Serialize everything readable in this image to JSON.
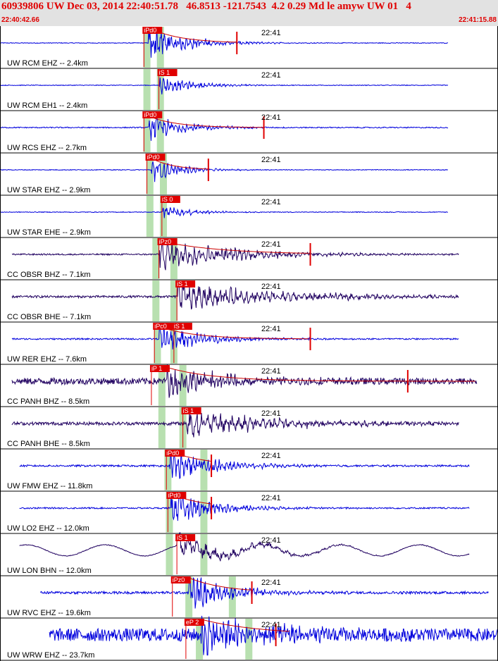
{
  "header": {
    "title": "60939806 UW Dec 03, 2014 22:40:51.78   46.8513 -121.7543  4.2 0.29 Md le amyw UW 01   4",
    "time_start": "22:40:42.66",
    "time_end": "22:41:15.88"
  },
  "colors": {
    "header_bg": "#e2e2e2",
    "header_text": "#e00000",
    "trace_short_period": "#0000dd",
    "trace_broadband": "#200060",
    "pick": "#e00000",
    "theoretical_band": "#b8e0b0",
    "coda_fit": "#cc0000"
  },
  "chart_data": {
    "type": "line",
    "title": "60939806 UW Dec 03, 2014 22:40:51.78   46.8513 -121.7543  4.2 0.29 Md le amyw UW 01   4",
    "x_unit": "seconds after 22:40:42.66",
    "xlim": [
      0,
      33.22
    ],
    "minute_tick": {
      "label": "22:41",
      "t": 17.34
    },
    "traces": [
      {
        "label": "UW RCM EHZ -- 2.4km",
        "color": "#0000dd",
        "start": 0,
        "end": 29.9,
        "noise": 0.02,
        "onset": 9.9,
        "amp": 0.95,
        "decay": 2.5,
        "period": 0.25,
        "picks": [
          {
            "label": "iPd0",
            "t": 9.6
          }
        ],
        "coda_end": 15.8,
        "coda_spike": 15.8,
        "bands": [
          9.8,
          10.7
        ]
      },
      {
        "label": "UW RCM EH1 -- 2.4km",
        "color": "#0000dd",
        "start": 0,
        "end": 29.9,
        "noise": 0.02,
        "onset": 10.6,
        "amp": 0.45,
        "decay": 2.3,
        "period": 0.25,
        "picks": [
          {
            "label": "iS 1",
            "t": 10.6
          }
        ],
        "coda_end": null,
        "coda_spike": null,
        "bands": [
          9.8,
          10.7
        ]
      },
      {
        "label": "UW RCS EHZ -- 2.7km",
        "color": "#0000dd",
        "start": 0,
        "end": 29.9,
        "noise": 0.03,
        "onset": 9.9,
        "amp": 0.7,
        "decay": 2.3,
        "period": 0.25,
        "picks": [
          {
            "label": "iPd0",
            "t": 9.6
          }
        ],
        "coda_end": 17.6,
        "coda_spike": 17.6,
        "bands": [
          9.8,
          10.7
        ]
      },
      {
        "label": "UW STAR EHZ -- 2.9km",
        "color": "#0000dd",
        "start": 0,
        "end": 29.9,
        "noise": 0.02,
        "onset": 10.1,
        "amp": 0.7,
        "decay": 1.8,
        "period": 0.25,
        "picks": [
          {
            "label": "iPd0",
            "t": 9.8
          }
        ],
        "coda_end": 13.9,
        "coda_spike": 13.9,
        "bands": [
          10.0,
          10.9
        ]
      },
      {
        "label": "UW STAR EHE -- 2.9km",
        "color": "#0000dd",
        "start": 0,
        "end": 29.9,
        "noise": 0.02,
        "onset": 10.8,
        "amp": 0.35,
        "decay": 2.0,
        "period": 0.25,
        "picks": [
          {
            "label": "iS 0",
            "t": 10.8
          }
        ],
        "coda_end": null,
        "coda_spike": null,
        "bands": [
          10.0,
          10.9
        ]
      },
      {
        "label": "CC OBSR BHZ -- 7.1km",
        "color": "#200060",
        "start": 0.8,
        "end": 30.6,
        "noise": 0.04,
        "onset": 10.5,
        "amp": 0.85,
        "decay": 5.0,
        "period": 0.3,
        "picks": [
          {
            "label": "iPz0",
            "t": 10.6
          }
        ],
        "coda_end": 20.7,
        "coda_spike": 20.7,
        "bands": [
          10.4,
          11.6
        ]
      },
      {
        "label": "CC OBSR BHE -- 7.1km",
        "color": "#200060",
        "start": 0.8,
        "end": 30.6,
        "noise": 0.06,
        "onset": 11.8,
        "amp": 0.7,
        "decay": 7.0,
        "period": 0.35,
        "picks": [
          {
            "label": "iS 1",
            "t": 11.8
          }
        ],
        "coda_end": null,
        "coda_spike": null,
        "bands": [
          10.4,
          11.6
        ]
      },
      {
        "label": "UW RER EHZ -- 7.6km",
        "color": "#0000dd",
        "start": 0.8,
        "end": 30.6,
        "noise": 0.04,
        "onset": 10.6,
        "amp": 0.75,
        "decay": 3.0,
        "period": 0.25,
        "picks": [
          {
            "label": "iPc0",
            "t": 10.3
          },
          {
            "label": "iS 1",
            "t": 11.6
          }
        ],
        "coda_end": 20.7,
        "coda_spike": 20.7,
        "bands": [
          10.5,
          11.6
        ]
      },
      {
        "label": "CC PANH BHZ -- 8.5km",
        "color": "#200060",
        "start": 0.8,
        "end": 31.8,
        "noise": 0.18,
        "onset": 11.1,
        "amp": 0.85,
        "decay": 4.0,
        "period": 0.25,
        "picks": [
          {
            "label": "iP 1",
            "t": 10.1
          }
        ],
        "coda_end": 31.8,
        "coda_spike": 27.2,
        "bands": [
          10.8,
          12.2
        ]
      },
      {
        "label": "CC PANH BHE -- 8.5km",
        "color": "#200060",
        "start": 0.8,
        "end": 30.6,
        "noise": 0.09,
        "onset": 12.2,
        "amp": 0.75,
        "decay": 6.0,
        "period": 0.4,
        "picks": [
          {
            "label": "iS 1",
            "t": 12.2
          }
        ],
        "coda_end": null,
        "coda_spike": null,
        "bands": [
          10.8,
          12.2
        ]
      },
      {
        "label": "UW FMW EHZ -- 11.8km",
        "color": "#0000dd",
        "start": 1.3,
        "end": 31.3,
        "noise": 0.05,
        "onset": 11.3,
        "amp": 0.9,
        "decay": 3.0,
        "period": 0.25,
        "picks": [
          {
            "label": "iPd0",
            "t": 11.1
          }
        ],
        "coda_end": 14.1,
        "coda_spike": 14.1,
        "bands": [
          11.2,
          13.6
        ]
      },
      {
        "label": "UW LO2 EHZ -- 12.0km",
        "color": "#0000dd",
        "start": 1.3,
        "end": 31.3,
        "noise": 0.04,
        "onset": 11.4,
        "amp": 0.85,
        "decay": 2.8,
        "period": 0.25,
        "picks": [
          {
            "label": "iPd0",
            "t": 11.2
          }
        ],
        "coda_end": 14.1,
        "coda_spike": 14.1,
        "bands": [
          11.3,
          13.6
        ]
      },
      {
        "label": "UW LON BHN -- 12.0km",
        "color": "#200060",
        "start": 1.3,
        "end": 31.3,
        "noise": 0.02,
        "onset": 11.8,
        "amp": 0.65,
        "decay": 4.0,
        "period": 0.6,
        "picks": [
          {
            "label": "iS 1",
            "t": 11.8
          }
        ],
        "coda_end": null,
        "coda_spike": null,
        "bands": [
          11.3,
          13.6
        ],
        "wobble": 0.3
      },
      {
        "label": "UW RVC EHZ -- 19.6km",
        "color": "#0000dd",
        "start": 2.7,
        "end": 32.6,
        "noise": 0.07,
        "onset": 12.6,
        "amp": 0.9,
        "decay": 3.0,
        "period": 0.25,
        "picks": [
          {
            "label": "iPz0",
            "t": 11.5
          }
        ],
        "coda_end": 16.8,
        "coda_spike": 16.8,
        "bands": [
          12.6,
          15.5
        ]
      },
      {
        "label": "UW WRW EHZ -- 23.7km",
        "color": "#0000dd",
        "start": 3.3,
        "end": 33.22,
        "noise": 0.35,
        "onset": 13.4,
        "amp": 0.95,
        "decay": 5.0,
        "period": 0.25,
        "picks": [
          {
            "label": "eP 2",
            "t": 12.4
          }
        ],
        "coda_end": 19.4,
        "coda_spike": 18.4,
        "bands": [
          13.3,
          16.6
        ]
      }
    ]
  }
}
